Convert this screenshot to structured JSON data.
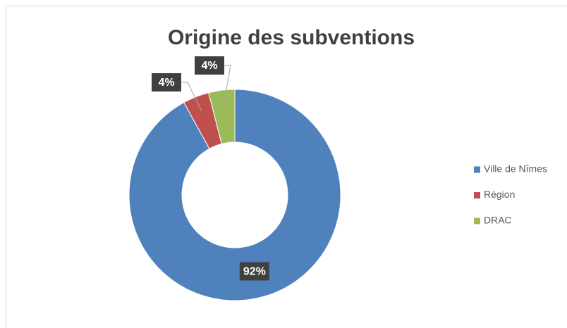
{
  "chart_data": {
    "type": "donut",
    "title": "Origine des subventions",
    "categories": [
      "Ville de Nîmes",
      "Région",
      "DRAC"
    ],
    "values": [
      92,
      4,
      4
    ],
    "value_labels": [
      "92%",
      "4%",
      "4%"
    ],
    "colors": [
      "#4f81bd",
      "#c0504d",
      "#9bbb59"
    ],
    "legend": "right"
  }
}
